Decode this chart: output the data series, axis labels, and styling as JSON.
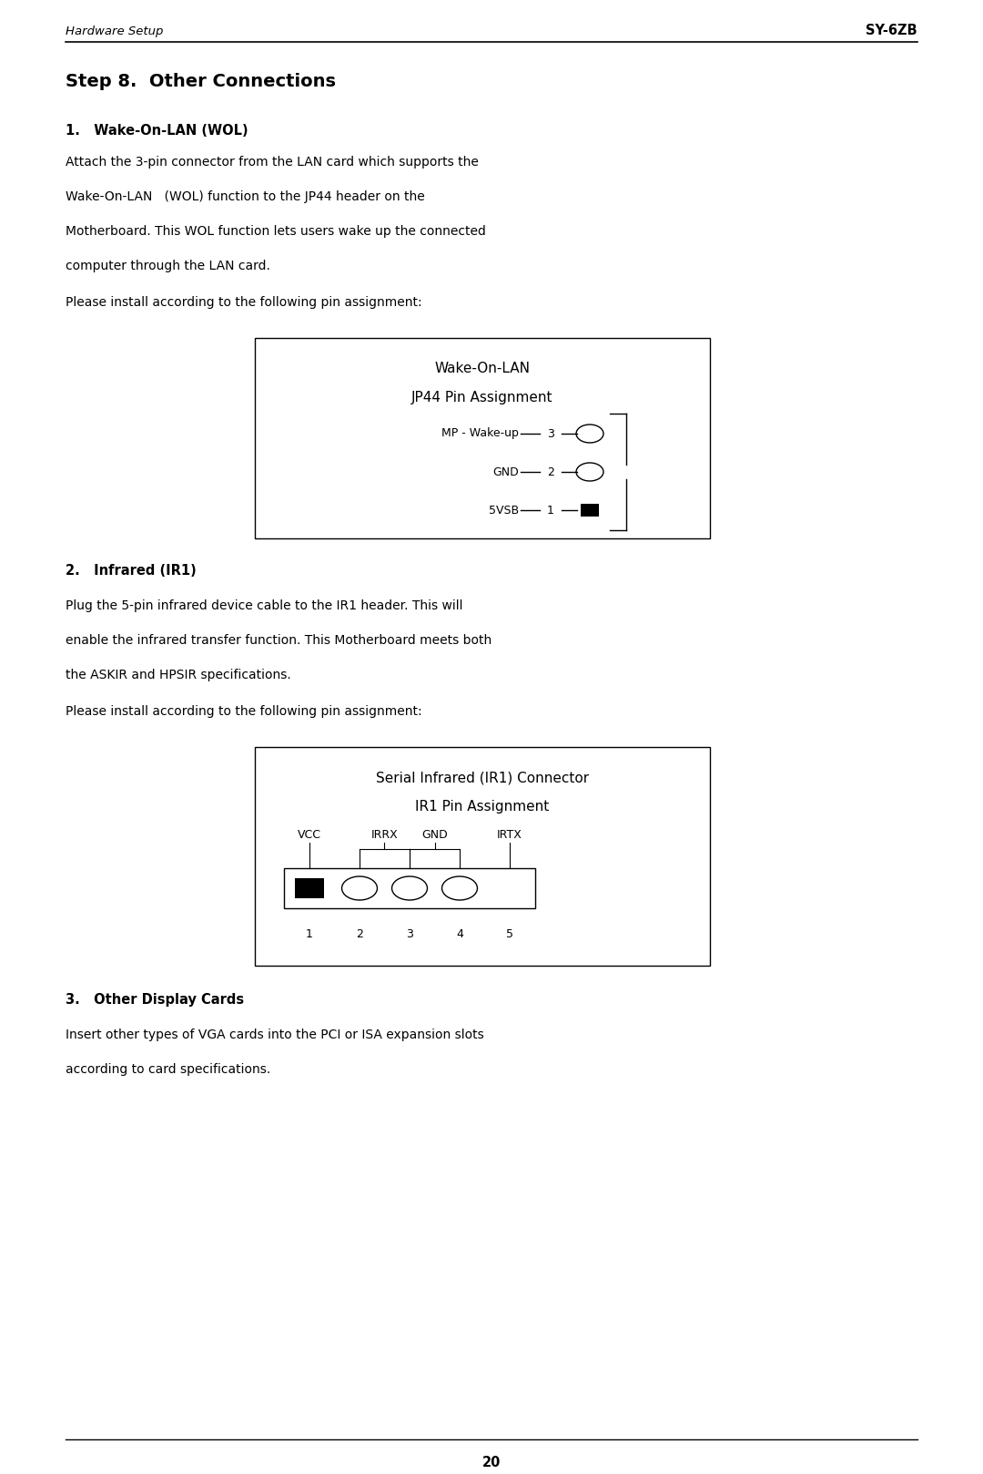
{
  "bg_color": "#ffffff",
  "text_color": "#000000",
  "page_width": 10.8,
  "page_height": 16.18,
  "header_left": "Hardware Setup",
  "header_right": "SY-6ZB",
  "main_title": "Step 8.  Other Connections",
  "section1_title": "1.   Wake-On-LAN (WOL)",
  "section1_body": [
    "Attach the 3-pin connector from the LAN card which supports the",
    "Wake-On-LAN   (WOL) function to the JP44 header on the",
    "Motherboard. This WOL function lets users wake up the connected",
    "computer through the LAN card."
  ],
  "section1_note": "Please install according to the following pin assignment:",
  "wol_box_title1": "Wake-On-LAN",
  "wol_box_title2": "JP44 Pin Assignment",
  "wol_pins": [
    {
      "label": "MP - Wake-up",
      "num": "3",
      "type": "open"
    },
    {
      "label": "GND",
      "num": "2",
      "type": "open"
    },
    {
      "label": "5VSB",
      "num": "1",
      "type": "filled"
    }
  ],
  "section2_title": "2.   Infrared (IR1)",
  "section2_body": [
    "Plug the 5-pin infrared device cable to the IR1 header. This will",
    "enable the infrared transfer function. This Motherboard meets both",
    "the ASKIR and HPSIR specifications."
  ],
  "section2_note": "Please install according to the following pin assignment:",
  "ir1_box_title1": "Serial Infrared (IR1) Connector",
  "ir1_box_title2": "IR1 Pin Assignment",
  "ir1_pins": [
    {
      "num": 1,
      "type": "filled"
    },
    {
      "num": 2,
      "type": "open"
    },
    {
      "num": 3,
      "type": "open"
    },
    {
      "num": 4,
      "type": "open"
    },
    {
      "num": 5,
      "type": "none"
    }
  ],
  "section3_title": "3.   Other Display Cards",
  "section3_body": [
    "Insert other types of VGA cards into the PCI or ISA expansion slots",
    "according to card specifications."
  ],
  "footer_line": true,
  "page_number": "20"
}
